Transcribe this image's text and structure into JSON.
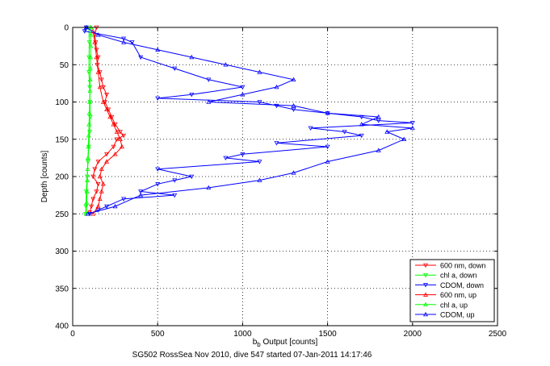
{
  "chart_data": {
    "type": "scatter",
    "xlabel_main": "b",
    "xlabel_sub": "b",
    "xlabel_rest": " Output [counts]",
    "ylabel": "Depth [counts]",
    "caption": "SG502 RossSea Nov 2010, dive 547 started 07-Jan-2011 14:17:46",
    "xlim": [
      0,
      2500
    ],
    "ylim": [
      0,
      400
    ],
    "y_reversed": true,
    "xticks": [
      0,
      500,
      1000,
      1500,
      2000,
      2500
    ],
    "yticks": [
      0,
      50,
      100,
      150,
      200,
      250,
      300,
      350,
      400
    ],
    "grid": true,
    "legend_position": "lower-right",
    "series": [
      {
        "name": "600 nm, down",
        "color": "#ff0000",
        "marker": "triangle-down",
        "points": [
          [
            140,
            0
          ],
          [
            130,
            10
          ],
          [
            135,
            20
          ],
          [
            140,
            30
          ],
          [
            150,
            40
          ],
          [
            145,
            50
          ],
          [
            160,
            60
          ],
          [
            170,
            70
          ],
          [
            180,
            80
          ],
          [
            200,
            90
          ],
          [
            190,
            100
          ],
          [
            210,
            110
          ],
          [
            230,
            120
          ],
          [
            250,
            130
          ],
          [
            280,
            140
          ],
          [
            300,
            145
          ],
          [
            260,
            150
          ],
          [
            240,
            160
          ],
          [
            200,
            170
          ],
          [
            150,
            180
          ],
          [
            130,
            190
          ],
          [
            120,
            200
          ],
          [
            150,
            210
          ],
          [
            140,
            220
          ],
          [
            120,
            230
          ],
          [
            110,
            240
          ],
          [
            100,
            248
          ]
        ]
      },
      {
        "name": "chl a, down",
        "color": "#00ff00",
        "marker": "triangle-down",
        "points": [
          [
            95,
            0
          ],
          [
            98,
            20
          ],
          [
            96,
            40
          ],
          [
            95,
            60
          ],
          [
            100,
            80
          ],
          [
            102,
            100
          ],
          [
            104,
            120
          ],
          [
            100,
            140
          ],
          [
            95,
            160
          ],
          [
            90,
            180
          ],
          [
            85,
            200
          ],
          [
            80,
            220
          ],
          [
            78,
            240
          ],
          [
            76,
            250
          ]
        ]
      },
      {
        "name": "CDOM, down",
        "color": "#0000ff",
        "marker": "triangle-down",
        "points": [
          [
            80,
            0
          ],
          [
            70,
            5
          ],
          [
            300,
            15
          ],
          [
            350,
            20
          ],
          [
            400,
            40
          ],
          [
            600,
            55
          ],
          [
            800,
            70
          ],
          [
            1000,
            80
          ],
          [
            700,
            90
          ],
          [
            500,
            95
          ],
          [
            1100,
            100
          ],
          [
            1200,
            105
          ],
          [
            1300,
            110
          ],
          [
            1500,
            115
          ],
          [
            1700,
            120
          ],
          [
            1800,
            125
          ],
          [
            2000,
            128
          ],
          [
            1400,
            135
          ],
          [
            1600,
            140
          ],
          [
            1700,
            145
          ],
          [
            1200,
            155
          ],
          [
            1500,
            160
          ],
          [
            1000,
            170
          ],
          [
            900,
            175
          ],
          [
            1100,
            180
          ],
          [
            500,
            190
          ],
          [
            700,
            200
          ],
          [
            600,
            205
          ],
          [
            500,
            210
          ],
          [
            400,
            220
          ],
          [
            600,
            225
          ],
          [
            300,
            230
          ],
          [
            200,
            240
          ],
          [
            150,
            245
          ],
          [
            100,
            250
          ]
        ]
      },
      {
        "name": "600 nm, up",
        "color": "#ff0000",
        "marker": "triangle-up",
        "points": [
          [
            120,
            250
          ],
          [
            150,
            240
          ],
          [
            160,
            230
          ],
          [
            170,
            220
          ],
          [
            180,
            210
          ],
          [
            160,
            200
          ],
          [
            170,
            190
          ],
          [
            200,
            180
          ],
          [
            250,
            170
          ],
          [
            290,
            160
          ],
          [
            280,
            150
          ],
          [
            260,
            140
          ],
          [
            240,
            130
          ],
          [
            220,
            120
          ],
          [
            200,
            110
          ],
          [
            180,
            100
          ],
          [
            160,
            80
          ],
          [
            150,
            60
          ],
          [
            140,
            40
          ],
          [
            130,
            20
          ],
          [
            120,
            5
          ]
        ]
      },
      {
        "name": "chl a, up",
        "color": "#00ff00",
        "marker": "triangle-up",
        "points": [
          [
            80,
            250
          ],
          [
            82,
            235
          ],
          [
            84,
            220
          ],
          [
            86,
            205
          ],
          [
            88,
            190
          ],
          [
            90,
            175
          ],
          [
            92,
            160
          ],
          [
            94,
            145
          ],
          [
            96,
            130
          ],
          [
            98,
            115
          ],
          [
            100,
            100
          ],
          [
            102,
            85
          ],
          [
            103,
            70
          ],
          [
            104,
            55
          ],
          [
            105,
            40
          ],
          [
            106,
            25
          ],
          [
            107,
            10
          ],
          [
            108,
            0
          ]
        ]
      },
      {
        "name": "CDOM, up",
        "color": "#0000ff",
        "marker": "triangle-up",
        "points": [
          [
            90,
            250
          ],
          [
            250,
            240
          ],
          [
            400,
            225
          ],
          [
            800,
            215
          ],
          [
            1100,
            205
          ],
          [
            1300,
            195
          ],
          [
            1500,
            180
          ],
          [
            1800,
            165
          ],
          [
            1950,
            150
          ],
          [
            1850,
            140
          ],
          [
            2000,
            135
          ],
          [
            1700,
            130
          ],
          [
            1800,
            120
          ],
          [
            1500,
            115
          ],
          [
            1300,
            105
          ],
          [
            800,
            100
          ],
          [
            1000,
            90
          ],
          [
            1200,
            80
          ],
          [
            1300,
            70
          ],
          [
            1100,
            60
          ],
          [
            900,
            50
          ],
          [
            700,
            40
          ],
          [
            500,
            30
          ],
          [
            300,
            20
          ],
          [
            150,
            10
          ],
          [
            80,
            0
          ]
        ]
      }
    ]
  }
}
